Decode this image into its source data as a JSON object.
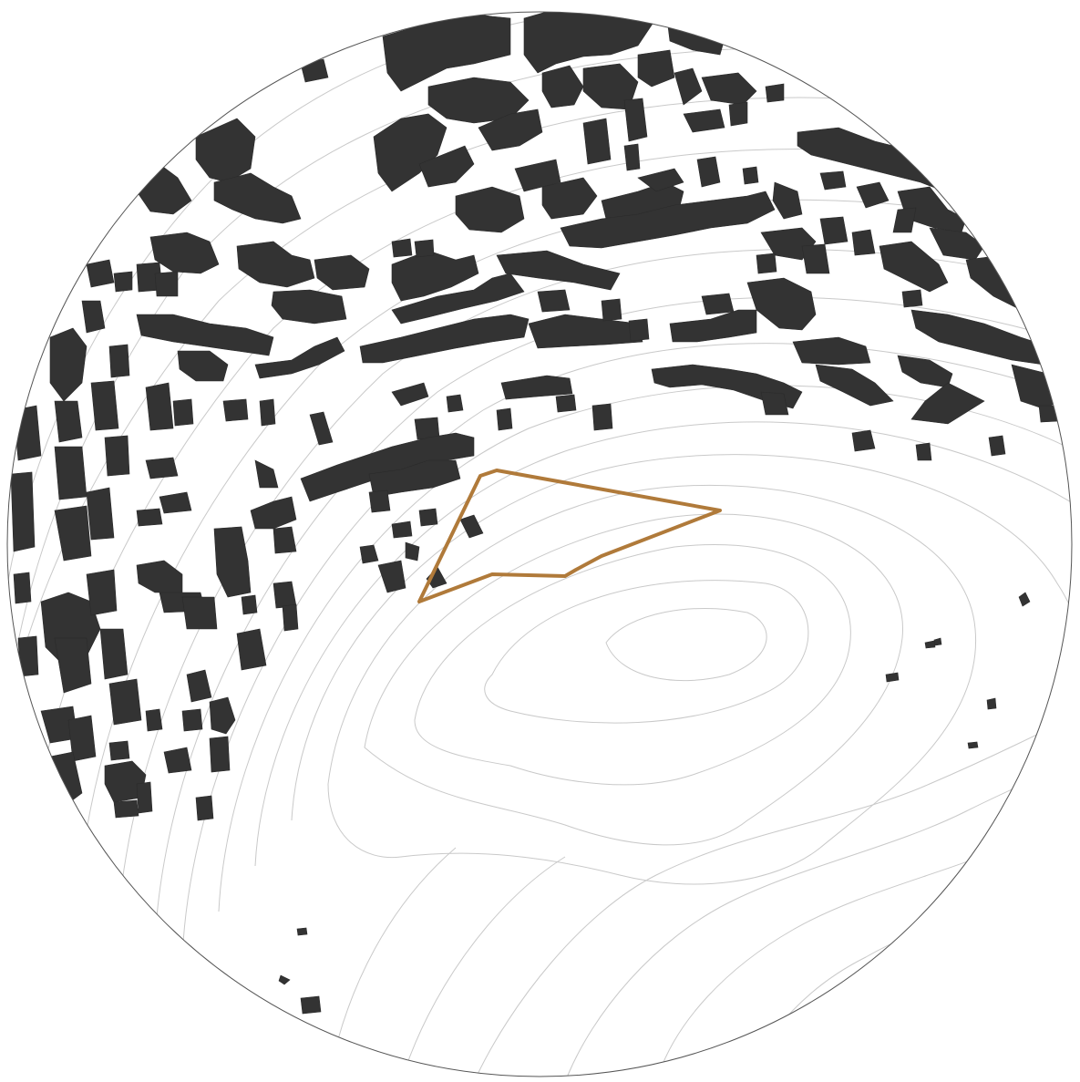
{
  "map": {
    "type": "figure-ground site plan",
    "shape": "circular frame",
    "colors": {
      "background": "#ffffff",
      "frame_stroke": "#555555",
      "buildings": "#333333",
      "contours": "#c9c9c9",
      "site_boundary": "#b07a3a"
    },
    "layers": [
      "buildings",
      "contour-lines",
      "site-boundary"
    ]
  }
}
